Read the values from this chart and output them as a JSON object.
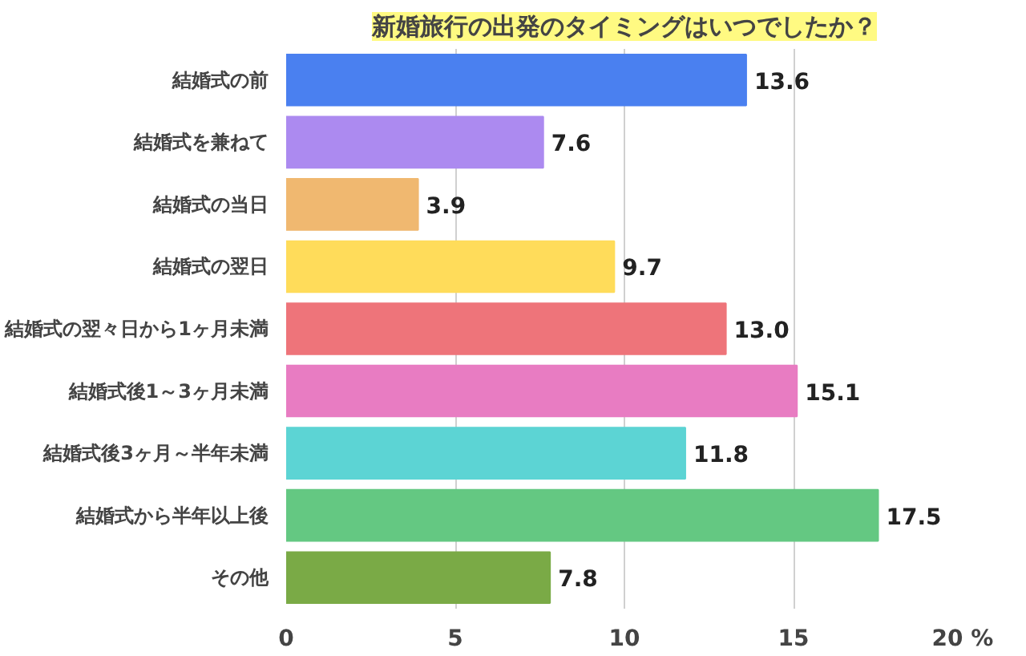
{
  "chart_data": {
    "type": "bar",
    "orientation": "horizontal",
    "title": "新婚旅行の出発のタイミングはいつでしたか？",
    "categories": [
      "結婚式の前",
      "結婚式を兼ねて",
      "結婚式の当日",
      "結婚式の翌日",
      "結婚式の翌々日から1ヶ月未満",
      "結婚式後1～3ヶ月未満",
      "結婚式後3ヶ月～半年未満",
      "結婚式から半年以上後",
      "その他"
    ],
    "values": [
      13.6,
      7.6,
      3.9,
      9.7,
      13.0,
      15.1,
      11.8,
      17.5,
      7.8
    ],
    "colors": [
      "#4a80f0",
      "#ac8af0",
      "#f0b870",
      "#ffdc5a",
      "#ee747a",
      "#e87cc2",
      "#5cd4d4",
      "#64c882",
      "#7aaa46"
    ],
    "xlim": [
      0,
      20
    ],
    "xticks": [
      0,
      5,
      10,
      15,
      {
        "value": 20,
        "label": "20 %"
      }
    ],
    "value_labels": [
      "13.6",
      "7.6",
      "3.9",
      "9.7",
      "13.0",
      "15.1",
      "11.8",
      "17.5",
      "7.8"
    ],
    "grid": "x"
  }
}
